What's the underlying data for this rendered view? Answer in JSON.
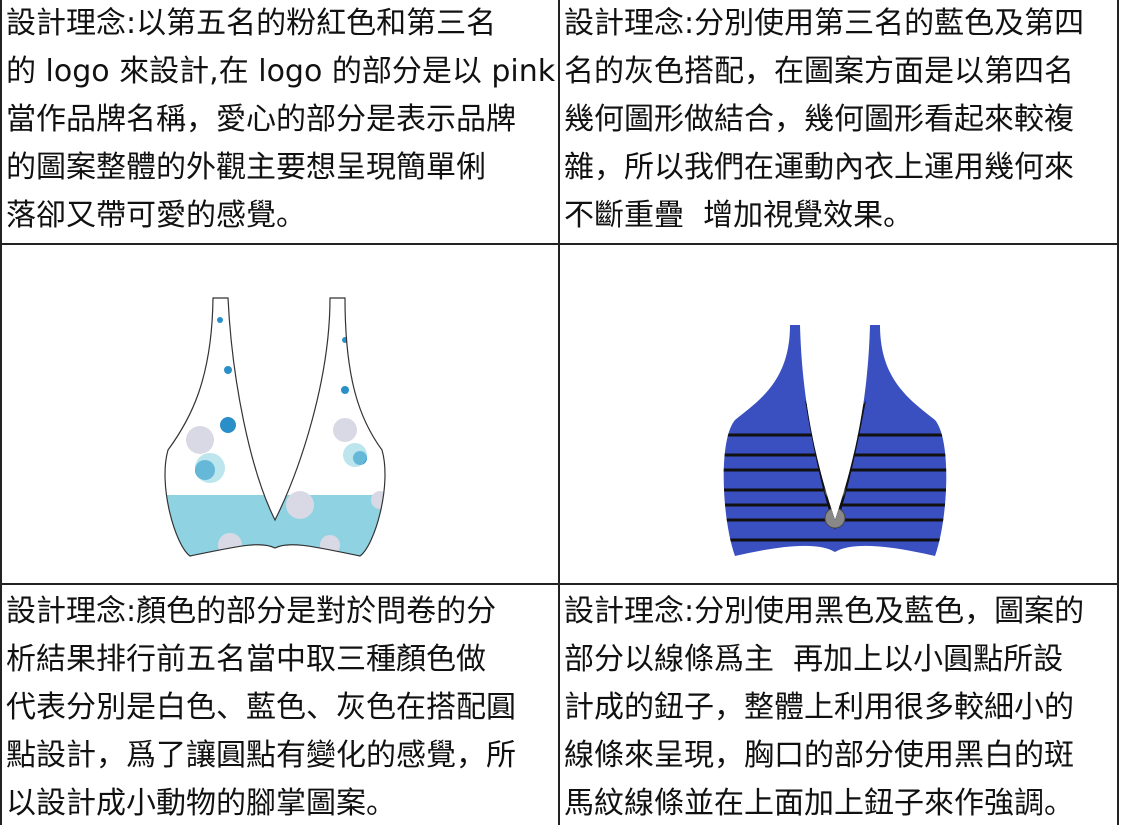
{
  "table": {
    "top": [
      [
        "設計理念:以第五名的粉紅色和第三名",
        "的 logo 來設計,在 logo 的部分是以 pink",
        "當作品牌名稱，愛心的部分是表示品牌",
        "的圖案整體的外觀主要想呈現簡單俐",
        "落卻又帶可愛的感覺。"
      ],
      [
        "設計理念:分別使用第三名的藍色及第四",
        "名的灰色搭配，在圖案方面是以第四名",
        "幾何圖形做結合，幾何圖形看起來較複",
        "雜，所以我們在運動內衣上運用幾何來",
        "不斷重疊  增加視覺效果。"
      ]
    ],
    "bottom": [
      [
        "設計理念:顏色的部分是對於問卷的分",
        "析結果排行前五名當中取三種顏色做",
        "代表分別是白色、藍色、灰色在搭配圓",
        "點設計，爲了讓圓點有變化的感覺，所",
        "以設計成小動物的腳掌圖案。"
      ],
      [
        "設計理念:分別使用黑色及藍色，圖案的",
        "部分以線條爲主  再加上以小圓點所設",
        "計成的鈕子，整體上利用很多較細小的",
        "線條來呈現，胸口的部分使用黑白的斑",
        "馬紋線條並在上面加上鈕子來作強調。"
      ]
    ]
  }
}
